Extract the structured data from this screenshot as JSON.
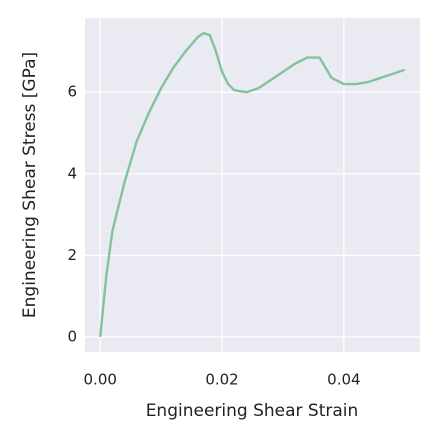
{
  "chart_data": {
    "type": "line",
    "xlabel": "Engineering Shear Strain",
    "ylabel": "Engineering Shear Stress [GPa]",
    "x": [
      0,
      0.001,
      0.002,
      0.004,
      0.006,
      0.008,
      0.01,
      0.012,
      0.014,
      0.016,
      0.017,
      0.018,
      0.019,
      0.02,
      0.021,
      0.022,
      0.024,
      0.026,
      0.028,
      0.03,
      0.032,
      0.034,
      0.036,
      0.037,
      0.038,
      0.04,
      0.042,
      0.044,
      0.046,
      0.048,
      0.05
    ],
    "series": [
      {
        "color": "#84c29a",
        "values": [
          0,
          1.5,
          2.6,
          3.8,
          4.8,
          5.5,
          6.1,
          6.6,
          7.0,
          7.35,
          7.45,
          7.4,
          7.0,
          6.5,
          6.2,
          6.05,
          6.0,
          6.1,
          6.3,
          6.5,
          6.7,
          6.85,
          6.85,
          6.6,
          6.35,
          6.2,
          6.2,
          6.25,
          6.35,
          6.45,
          6.55
        ]
      }
    ],
    "xlim": [
      -0.0025,
      0.0525
    ],
    "ylim": [
      -0.37,
      7.82
    ],
    "xticks": [
      {
        "value": 0,
        "label": "0.00"
      },
      {
        "value": 0.02,
        "label": "0.02"
      },
      {
        "value": 0.04,
        "label": "0.04"
      }
    ],
    "yticks": [
      0,
      2,
      4,
      6
    ],
    "grid": true
  }
}
